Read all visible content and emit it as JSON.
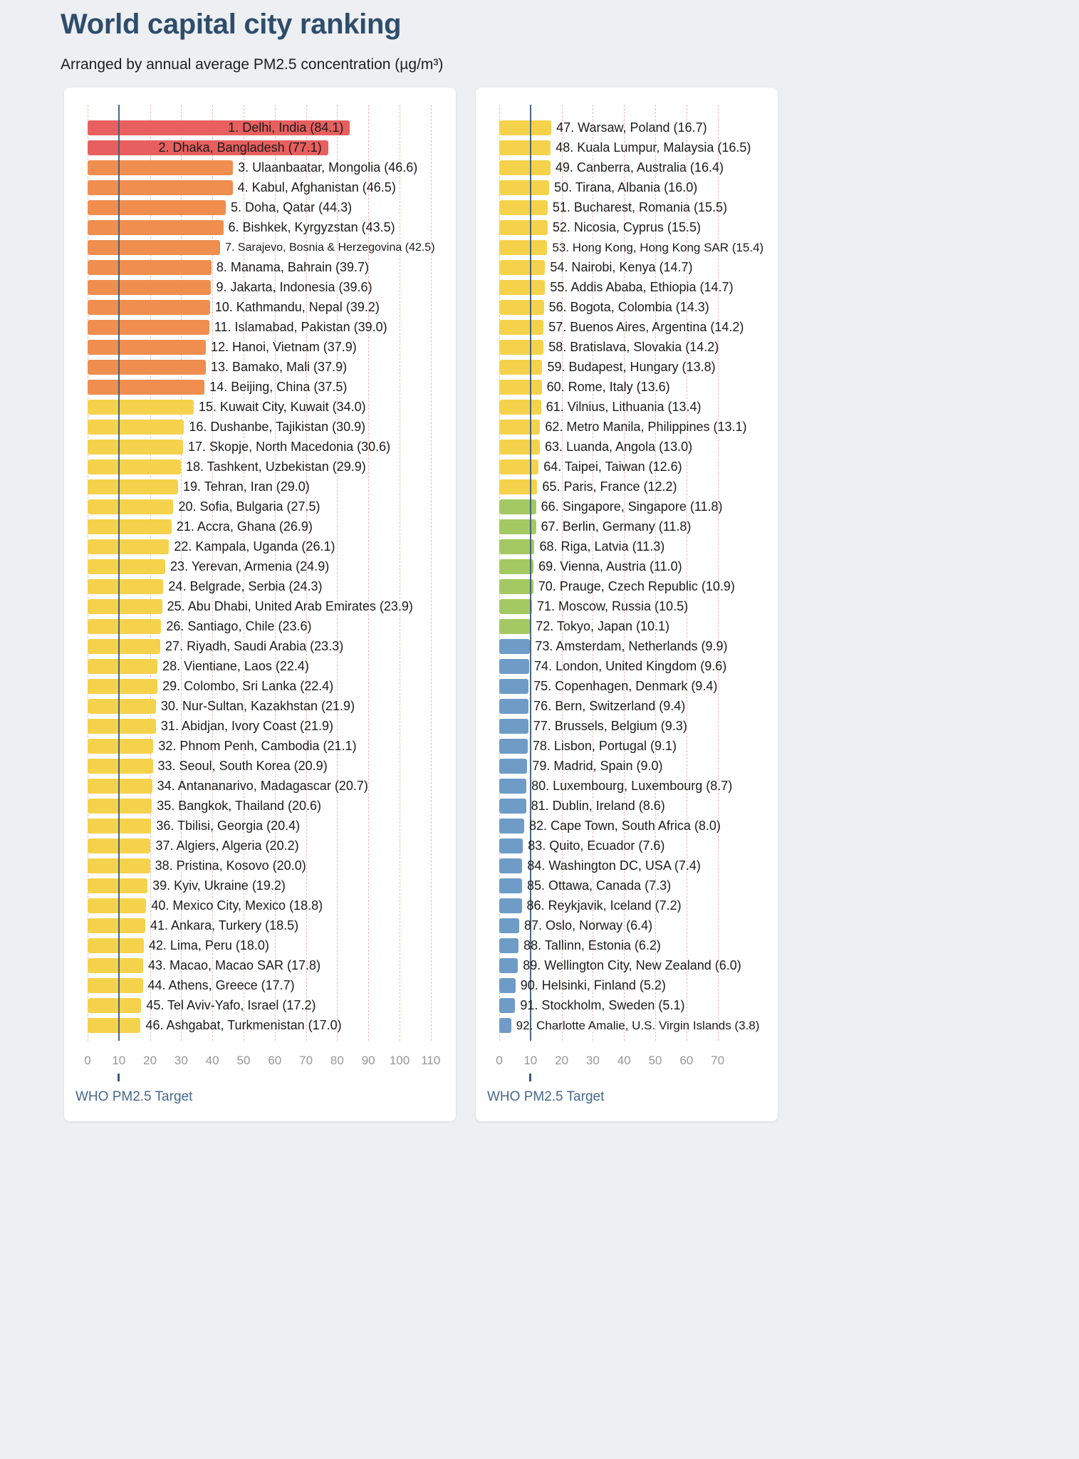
{
  "chart_data": {
    "type": "bar",
    "orientation": "horizontal",
    "title": "World capital city ranking",
    "subtitle": "Arranged by annual average PM2.5 concentration (µg/m³)",
    "value_unit": "µg/m³",
    "grid": "dashed-vertical",
    "who_target": 10,
    "who_target_label": "WHO PM2.5 Target",
    "color_scale": [
      {
        "min": 55.5,
        "name": "red",
        "color": "#e85f5f"
      },
      {
        "min": 35.5,
        "name": "orange",
        "color": "#ef8e4e"
      },
      {
        "min": 12.1,
        "name": "yellow",
        "color": "#f5d24b"
      },
      {
        "min": 10.0,
        "name": "green",
        "color": "#a4c962"
      },
      {
        "min": 0,
        "name": "blue",
        "color": "#6f9bc7"
      }
    ],
    "panels": [
      {
        "ticks": [
          0,
          10,
          20,
          30,
          40,
          50,
          60,
          70,
          80,
          90,
          100,
          110
        ],
        "bars": [
          {
            "rank": 1,
            "name": "Delhi, India",
            "value": 84.1
          },
          {
            "rank": 2,
            "name": "Dhaka, Bangladesh",
            "value": 77.1
          },
          {
            "rank": 3,
            "name": "Ulaanbaatar, Mongolia",
            "value": 46.6
          },
          {
            "rank": 4,
            "name": "Kabul, Afghanistan",
            "value": 46.5
          },
          {
            "rank": 5,
            "name": "Doha, Qatar",
            "value": 44.3
          },
          {
            "rank": 6,
            "name": "Bishkek, Kyrgyzstan",
            "value": 43.5
          },
          {
            "rank": 7,
            "name": "Sarajevo, Bosnia & Herzegovina",
            "value": 42.5
          },
          {
            "rank": 8,
            "name": "Manama, Bahrain",
            "value": 39.7
          },
          {
            "rank": 9,
            "name": "Jakarta, Indonesia",
            "value": 39.6
          },
          {
            "rank": 10,
            "name": "Kathmandu, Nepal",
            "value": 39.2
          },
          {
            "rank": 11,
            "name": "Islamabad, Pakistan",
            "value": 39.0
          },
          {
            "rank": 12,
            "name": "Hanoi, Vietnam",
            "value": 37.9
          },
          {
            "rank": 13,
            "name": "Bamako, Mali",
            "value": 37.9
          },
          {
            "rank": 14,
            "name": "Beijing, China",
            "value": 37.5
          },
          {
            "rank": 15,
            "name": "Kuwait City, Kuwait",
            "value": 34.0
          },
          {
            "rank": 16,
            "name": "Dushanbe, Tajikistan",
            "value": 30.9
          },
          {
            "rank": 17,
            "name": "Skopje, North Macedonia",
            "value": 30.6
          },
          {
            "rank": 18,
            "name": "Tashkent, Uzbekistan",
            "value": 29.9
          },
          {
            "rank": 19,
            "name": "Tehran, Iran",
            "value": 29.0
          },
          {
            "rank": 20,
            "name": "Sofia, Bulgaria",
            "value": 27.5
          },
          {
            "rank": 21,
            "name": "Accra, Ghana",
            "value": 26.9
          },
          {
            "rank": 22,
            "name": "Kampala, Uganda",
            "value": 26.1
          },
          {
            "rank": 23,
            "name": "Yerevan, Armenia",
            "value": 24.9
          },
          {
            "rank": 24,
            "name": "Belgrade, Serbia",
            "value": 24.3
          },
          {
            "rank": 25,
            "name": "Abu Dhabi, United Arab Emirates",
            "value": 23.9
          },
          {
            "rank": 26,
            "name": "Santiago, Chile",
            "value": 23.6
          },
          {
            "rank": 27,
            "name": "Riyadh, Saudi Arabia",
            "value": 23.3
          },
          {
            "rank": 28,
            "name": "Vientiane, Laos",
            "value": 22.4
          },
          {
            "rank": 29,
            "name": "Colombo, Sri Lanka",
            "value": 22.4
          },
          {
            "rank": 30,
            "name": "Nur-Sultan, Kazakhstan",
            "value": 21.9
          },
          {
            "rank": 31,
            "name": "Abidjan, Ivory Coast",
            "value": 21.9
          },
          {
            "rank": 32,
            "name": "Phnom Penh, Cambodia",
            "value": 21.1
          },
          {
            "rank": 33,
            "name": "Seoul, South Korea",
            "value": 20.9
          },
          {
            "rank": 34,
            "name": "Antananarivo, Madagascar",
            "value": 20.7
          },
          {
            "rank": 35,
            "name": "Bangkok, Thailand",
            "value": 20.6
          },
          {
            "rank": 36,
            "name": "Tbilisi, Georgia",
            "value": 20.4
          },
          {
            "rank": 37,
            "name": "Algiers, Algeria",
            "value": 20.2
          },
          {
            "rank": 38,
            "name": "Pristina, Kosovo",
            "value": 20.0
          },
          {
            "rank": 39,
            "name": "Kyiv, Ukraine",
            "value": 19.2
          },
          {
            "rank": 40,
            "name": "Mexico City, Mexico",
            "value": 18.8
          },
          {
            "rank": 41,
            "name": "Ankara, Turkery",
            "value": 18.5
          },
          {
            "rank": 42,
            "name": "Lima, Peru",
            "value": 18.0
          },
          {
            "rank": 43,
            "name": "Macao, Macao SAR",
            "value": 17.8
          },
          {
            "rank": 44,
            "name": "Athens, Greece",
            "value": 17.7
          },
          {
            "rank": 45,
            "name": "Tel Aviv-Yafo, Israel",
            "value": 17.2
          },
          {
            "rank": 46,
            "name": "Ashgabat, Turkmenistan",
            "value": 17.0
          }
        ]
      },
      {
        "ticks": [
          0,
          10,
          20,
          30,
          40,
          50,
          60,
          70
        ],
        "bars": [
          {
            "rank": 47,
            "name": "Warsaw, Poland",
            "value": 16.7
          },
          {
            "rank": 48,
            "name": "Kuala Lumpur, Malaysia",
            "value": 16.5
          },
          {
            "rank": 49,
            "name": "Canberra, Australia",
            "value": 16.4
          },
          {
            "rank": 50,
            "name": "Tirana, Albania",
            "value": 16.0
          },
          {
            "rank": 51,
            "name": "Bucharest, Romania",
            "value": 15.5
          },
          {
            "rank": 52,
            "name": "Nicosia, Cyprus",
            "value": 15.5
          },
          {
            "rank": 53,
            "name": "Hong Kong, Hong Kong SAR",
            "value": 15.4
          },
          {
            "rank": 54,
            "name": "Nairobi, Kenya",
            "value": 14.7
          },
          {
            "rank": 55,
            "name": "Addis Ababa, Ethiopia",
            "value": 14.7
          },
          {
            "rank": 56,
            "name": "Bogota, Colombia",
            "value": 14.3
          },
          {
            "rank": 57,
            "name": "Buenos Aires, Argentina",
            "value": 14.2
          },
          {
            "rank": 58,
            "name": "Bratislava, Slovakia",
            "value": 14.2
          },
          {
            "rank": 59,
            "name": "Budapest, Hungary",
            "value": 13.8
          },
          {
            "rank": 60,
            "name": "Rome, Italy",
            "value": 13.6
          },
          {
            "rank": 61,
            "name": "Vilnius, Lithuania",
            "value": 13.4
          },
          {
            "rank": 62,
            "name": "Metro Manila, Philippines",
            "value": 13.1
          },
          {
            "rank": 63,
            "name": "Luanda, Angola",
            "value": 13.0
          },
          {
            "rank": 64,
            "name": "Taipei, Taiwan",
            "value": 12.6
          },
          {
            "rank": 65,
            "name": "Paris, France",
            "value": 12.2
          },
          {
            "rank": 66,
            "name": "Singapore, Singapore",
            "value": 11.8
          },
          {
            "rank": 67,
            "name": "Berlin, Germany",
            "value": 11.8
          },
          {
            "rank": 68,
            "name": "Riga, Latvia",
            "value": 11.3
          },
          {
            "rank": 69,
            "name": "Vienna, Austria",
            "value": 11.0
          },
          {
            "rank": 70,
            "name": "Prauge, Czech Republic",
            "value": 10.9
          },
          {
            "rank": 71,
            "name": "Moscow, Russia",
            "value": 10.5
          },
          {
            "rank": 72,
            "name": "Tokyo, Japan",
            "value": 10.1
          },
          {
            "rank": 73,
            "name": "Amsterdam, Netherlands",
            "value": 9.9
          },
          {
            "rank": 74,
            "name": "London, United Kingdom",
            "value": 9.6
          },
          {
            "rank": 75,
            "name": "Copenhagen, Denmark",
            "value": 9.4
          },
          {
            "rank": 76,
            "name": "Bern, Switzerland",
            "value": 9.4
          },
          {
            "rank": 77,
            "name": "Brussels, Belgium",
            "value": 9.3
          },
          {
            "rank": 78,
            "name": "Lisbon, Portugal",
            "value": 9.1
          },
          {
            "rank": 79,
            "name": "Madrid, Spain",
            "value": 9.0
          },
          {
            "rank": 80,
            "name": "Luxembourg, Luxembourg",
            "value": 8.7
          },
          {
            "rank": 81,
            "name": "Dublin, Ireland",
            "value": 8.6
          },
          {
            "rank": 82,
            "name": "Cape Town, South Africa",
            "value": 8.0
          },
          {
            "rank": 83,
            "name": "Quito, Ecuador",
            "value": 7.6
          },
          {
            "rank": 84,
            "name": "Washington DC, USA",
            "value": 7.4
          },
          {
            "rank": 85,
            "name": "Ottawa, Canada",
            "value": 7.3
          },
          {
            "rank": 86,
            "name": "Reykjavik, Iceland",
            "value": 7.2
          },
          {
            "rank": 87,
            "name": "Oslo, Norway",
            "value": 6.4
          },
          {
            "rank": 88,
            "name": "Tallinn, Estonia",
            "value": 6.2
          },
          {
            "rank": 89,
            "name": "Wellington City, New Zealand",
            "value": 6.0
          },
          {
            "rank": 90,
            "name": "Helsinki, Finland",
            "value": 5.2
          },
          {
            "rank": 91,
            "name": "Stockholm, Sweden",
            "value": 5.1
          },
          {
            "rank": 92,
            "name": "Charlotte Amalie, U.S. Virgin Islands",
            "value": 3.8
          }
        ]
      }
    ]
  }
}
